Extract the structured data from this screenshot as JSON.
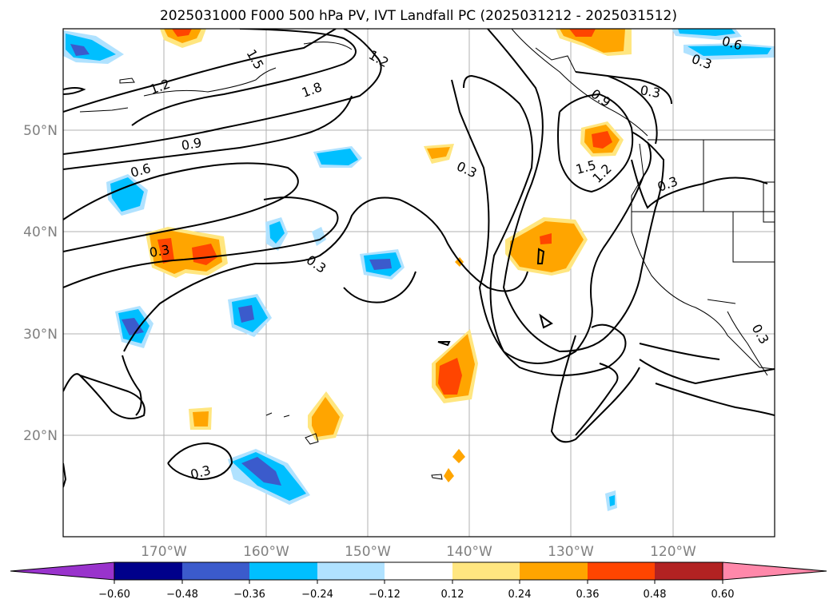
{
  "title": "2025031000 F000 500 hPa PV, IVT Landfall PC (2025031212 - 2025031512)",
  "map": {
    "projection": "PlateCarree",
    "lon_range": [
      -180,
      -110
    ],
    "lat_range": [
      10,
      60
    ],
    "lon_labels": [
      "170°W",
      "160°W",
      "150°W",
      "140°W",
      "130°W",
      "120°W"
    ],
    "lat_labels": [
      "50°N",
      "40°N",
      "30°N",
      "20°N"
    ],
    "gridlines": true
  },
  "contour_labels": [
    "1.5",
    "1.2",
    "1.2",
    "1.8",
    "0.9",
    "0.6",
    "0.3",
    "0.3",
    "0.3",
    "0.3",
    "0.9",
    "0.3",
    "1.5",
    "1.2",
    "0.3",
    "0.6",
    "0.3",
    "0.3"
  ],
  "colorbar": {
    "ticks": [
      "−0.60",
      "−0.48",
      "−0.36",
      "−0.24",
      "−0.12",
      "0.12",
      "0.24",
      "0.36",
      "0.48",
      "0.60"
    ],
    "colors": [
      "#9933cc",
      "#00008b",
      "#3b5bcc",
      "#00bfff",
      "#b0e2ff",
      "#ffffff",
      "#ffe680",
      "#ffa500",
      "#ff4500",
      "#b22222",
      "#ff88aa"
    ],
    "extend": "both"
  }
}
